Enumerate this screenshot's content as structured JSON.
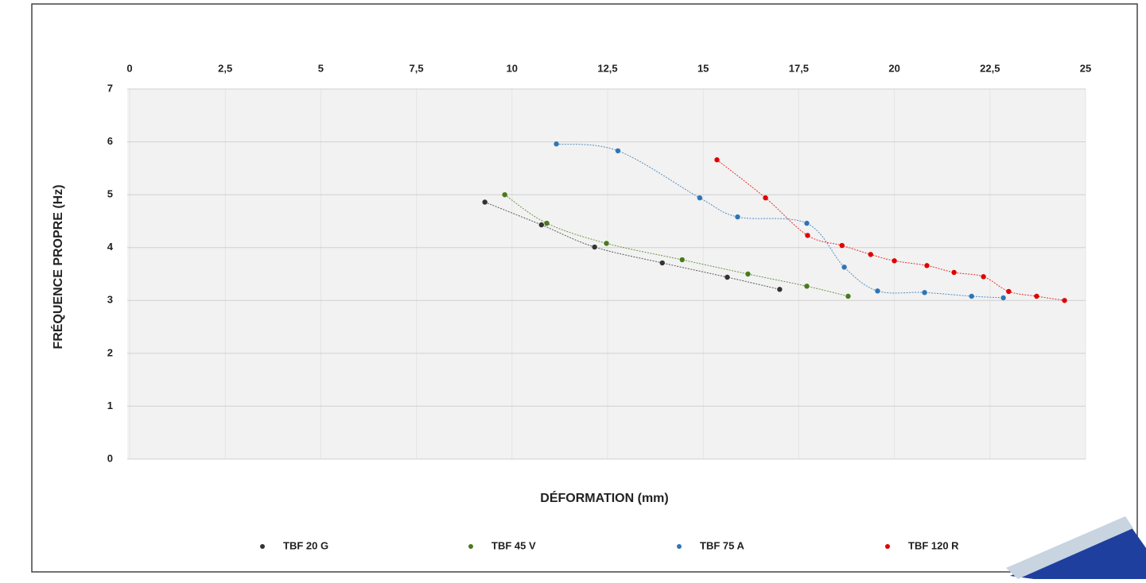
{
  "chart_data": {
    "type": "scatter",
    "x_label": "DÉFORMATION (mm)",
    "y_label": "FRÉQUENCE PROPRE (Hz)",
    "xlim": [
      0,
      25
    ],
    "xticks": [
      0,
      {
        "value": 2.5,
        "label": "2,5"
      },
      5,
      {
        "value": 7.5,
        "label": "7,5"
      },
      10,
      {
        "value": 12.5,
        "label": "12,5"
      },
      15,
      {
        "value": 17.5,
        "label": "17,5"
      },
      20,
      {
        "value": 22.5,
        "label": "22,5"
      },
      25
    ],
    "ylim": [
      0,
      7
    ],
    "yticks": [
      0,
      1,
      2,
      3,
      4,
      5,
      6,
      7
    ],
    "grid": true,
    "legend": "bottom",
    "series": [
      {
        "name": "TBF 20 G",
        "color": "#333333",
        "x": [
          9.29,
          10.77,
          12.16,
          13.93,
          15.63,
          17.0
        ],
        "values": [
          4.86,
          4.43,
          4.01,
          3.71,
          3.44,
          3.21
        ]
      },
      {
        "name": "TBF 45 V",
        "color": "#4a7a1e",
        "x": [
          9.81,
          10.91,
          12.47,
          14.45,
          16.17,
          17.71,
          18.79
        ],
        "values": [
          5.0,
          4.46,
          4.08,
          3.77,
          3.5,
          3.27,
          3.08
        ]
      },
      {
        "name": "TBF 75 A",
        "color": "#2e75b6",
        "x": [
          11.16,
          12.77,
          14.91,
          15.9,
          17.71,
          18.69,
          19.56,
          20.79,
          22.02,
          22.85
        ],
        "values": [
          5.96,
          5.83,
          4.94,
          4.58,
          4.46,
          3.63,
          3.18,
          3.15,
          3.08,
          3.05
        ]
      },
      {
        "name": "TBF 120 R",
        "color": "#e00000",
        "x": [
          15.36,
          16.63,
          17.73,
          18.63,
          19.38,
          20.0,
          20.85,
          21.56,
          22.33,
          22.99,
          23.72,
          24.45
        ],
        "values": [
          5.66,
          4.94,
          4.23,
          4.04,
          3.87,
          3.75,
          3.66,
          3.53,
          3.45,
          3.17,
          3.08,
          3.0
        ]
      }
    ]
  }
}
